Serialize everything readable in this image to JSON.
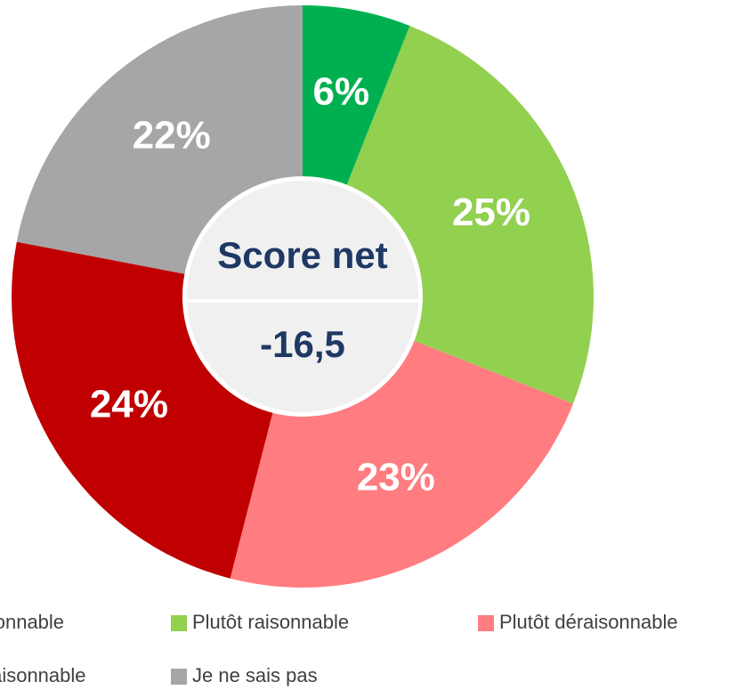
{
  "chart_data": {
    "type": "donut",
    "categories": [
      "Très raisonnable",
      "Plutôt raisonnable",
      "Plutôt déraisonnable",
      "Très déraisonnable",
      "Je ne sais pas"
    ],
    "values": [
      6,
      25,
      23,
      24,
      22
    ],
    "value_labels": [
      "6%",
      "25%",
      "23%",
      "24%",
      "22%"
    ],
    "colors": [
      "#00b050",
      "#92d050",
      "#ff7c80",
      "#c00000",
      "#a6a6a6"
    ],
    "center_title": "Score net",
    "center_value": "-16,5",
    "legend": "bottom"
  }
}
